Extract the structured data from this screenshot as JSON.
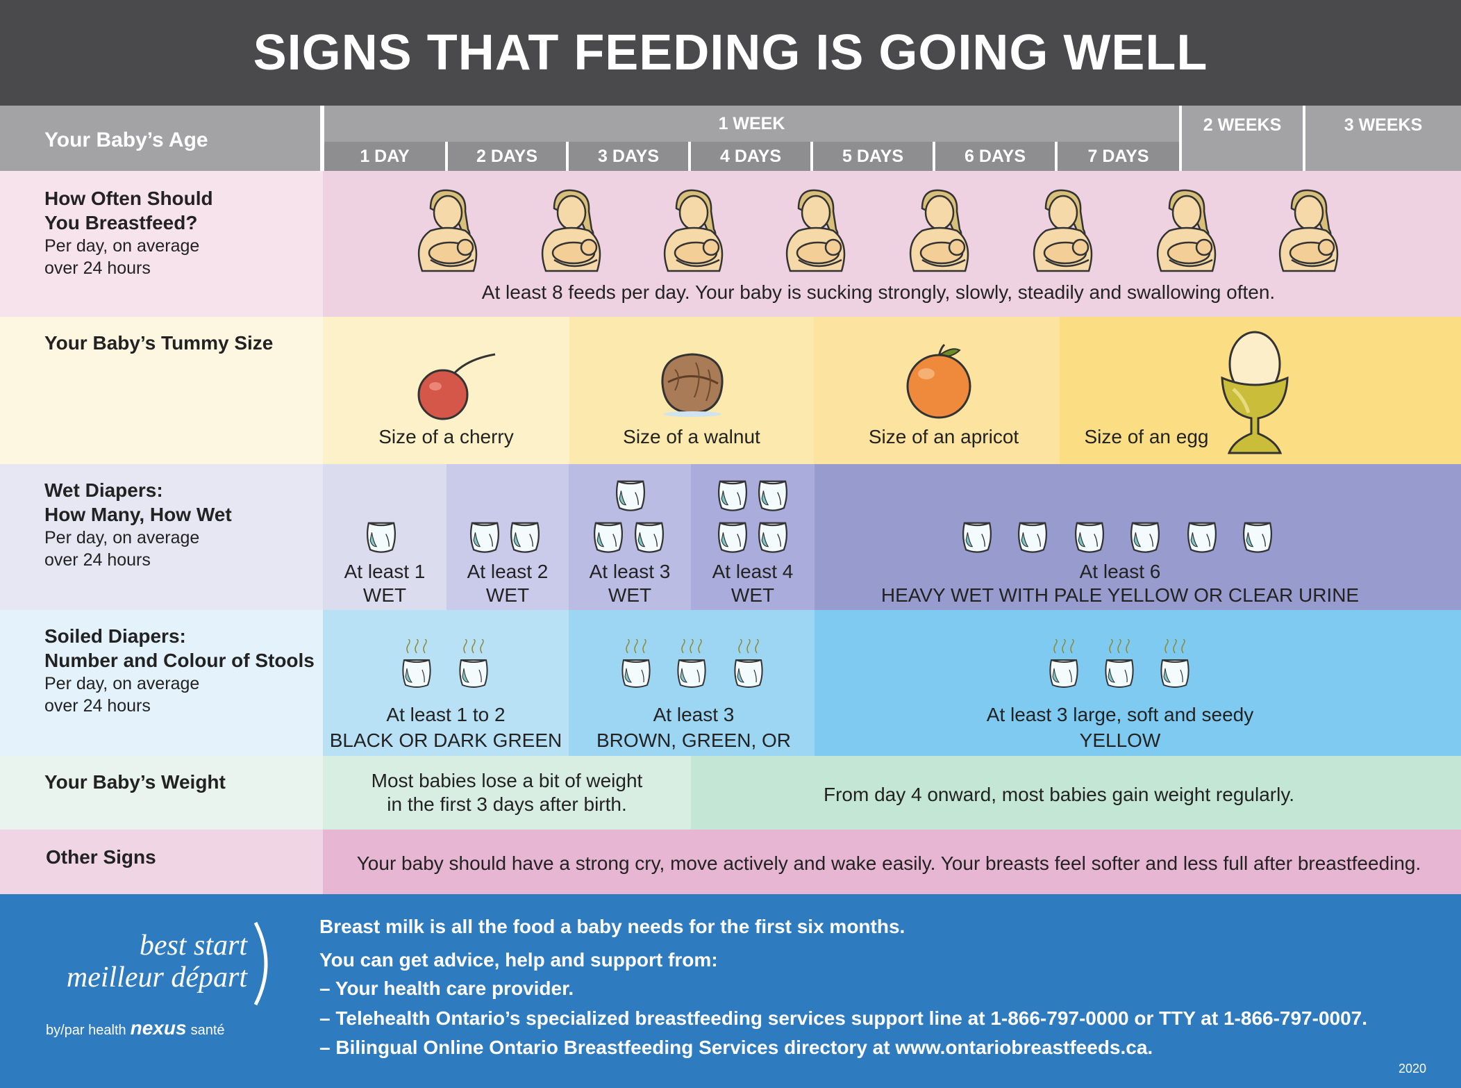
{
  "title": "SIGNS THAT FEEDING IS GOING WELL",
  "header": {
    "age_label": "Your Baby’s Age",
    "week1": "1 WEEK",
    "week2": "2 WEEKS",
    "week3": "3 WEEKS",
    "days": [
      "1 DAY",
      "2 DAYS",
      "3 DAYS",
      "4 DAYS",
      "5 DAYS",
      "6 DAYS",
      "7 DAYS"
    ]
  },
  "rows": {
    "breastfeed": {
      "title_line1": "How Often Should",
      "title_line2": "You Breastfeed?",
      "sub_line1": "Per day, on average",
      "sub_line2": "over 24 hours",
      "text": "At least 8 feeds per day. Your baby is sucking strongly, slowly, steadily and swallowing often."
    },
    "tummy": {
      "title": "Your Baby’s Tummy Size",
      "cherry": "Size of a cherry",
      "walnut": "Size of a walnut",
      "apricot": "Size of an apricot",
      "egg": "Size of an egg"
    },
    "wet": {
      "title_line1": "Wet Diapers:",
      "title_line2": "How Many, How Wet",
      "sub_line1": "Per day, on average",
      "sub_line2": "over 24 hours",
      "c1_line1": "At least 1",
      "c1_line2": "WET",
      "c2_line1": "At least 2",
      "c2_line2": "WET",
      "c3_line1": "At least 3",
      "c3_line2": "WET",
      "c4_line1": "At least 4",
      "c4_line2": "WET",
      "c5_line1": "At least 6",
      "c5_line2": "HEAVY WET WITH PALE YELLOW OR CLEAR URINE"
    },
    "soiled": {
      "title_line1": "Soiled Diapers:",
      "title_line2": "Number and Colour of Stools",
      "sub_line1": "Per day, on average",
      "sub_line2": "over 24 hours",
      "c1_line1": "At least 1 to 2",
      "c1_line2": "BLACK OR DARK GREEN",
      "c2_line1": "At least 3",
      "c2_line2": "BROWN, GREEN, OR YELLOW",
      "c3_line1": "At least 3 large, soft and seedy",
      "c3_line2": "YELLOW"
    },
    "weight": {
      "title": "Your Baby’s Weight",
      "c1_line1": "Most babies lose a bit of weight",
      "c1_line2": "in the first 3 days after birth.",
      "c2": "From day 4 onward, most babies gain weight regularly."
    },
    "other": {
      "title": "Other Signs",
      "text": "Your baby should have a strong cry, move actively and wake easily. Your breasts feel softer and less full after breastfeeding."
    }
  },
  "footer": {
    "line1": "Breast milk is all the food a baby needs for the first six months.",
    "line2": "You can get advice, help and support from:",
    "line3": "– Your health care provider.",
    "line4": "– Telehealth Ontario’s specialized breastfeeding services support line at 1-866-797-0000 or TTY at 1-866-797-0007.",
    "line5": "– Bilingual Online Ontario Breastfeeding Services directory at www.ontariobreastfeeds.ca.",
    "logo_line1": "best start",
    "logo_line2": "meilleur départ",
    "by_text": "by/par health",
    "nexus": "nexus",
    "sante": "santé",
    "year": "2020"
  },
  "colors": {
    "title_bg": "#4a4a4c",
    "header_bg": "#a3a3a6",
    "day_bg": "#8e8e91",
    "breastfeed_bg": "#efd2e2",
    "tummy_bg": "#fcf1c8",
    "wet_bg": "#c9c9e6",
    "soiled_bg": "#a8d9f2",
    "weight_bg": "#cfe9de",
    "other_bg": "#e7b6d3",
    "footer_bg": "#2f7bc0"
  }
}
